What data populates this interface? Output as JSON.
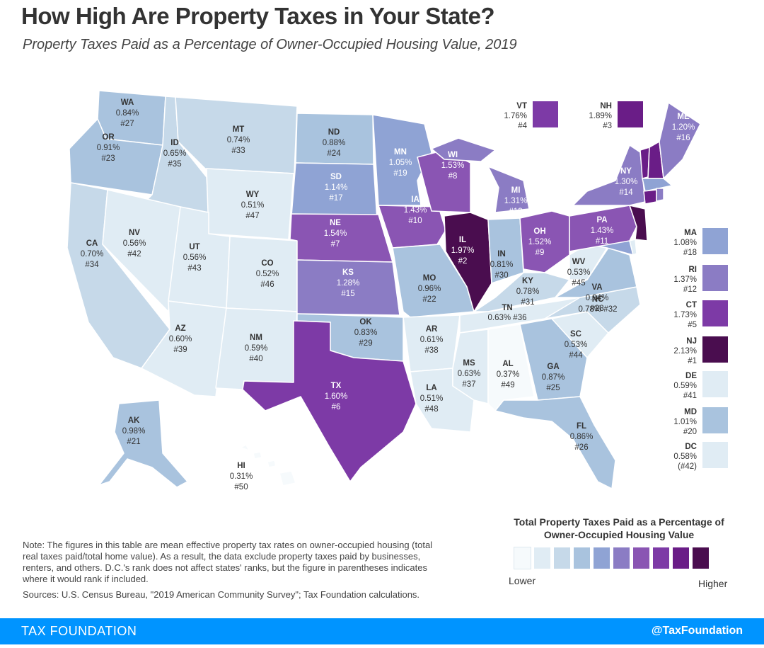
{
  "title": "How High Are Property Taxes in Your State?",
  "subtitle": "Property Taxes Paid as a Percentage of Owner-Occupied Housing Value, 2019",
  "colors": {
    "scale": [
      "#f6fafc",
      "#e0ecf4",
      "#c6d9e9",
      "#a9c3de",
      "#8fa3d4",
      "#8b7cc4",
      "#8a55b3",
      "#7d3aa6",
      "#6a1d87",
      "#4a0d4f"
    ]
  },
  "states": [
    {
      "abbr": "WA",
      "rate": "0.84%",
      "rank": "#27"
    },
    {
      "abbr": "OR",
      "rate": "0.91%",
      "rank": "#23"
    },
    {
      "abbr": "CA",
      "rate": "0.70%",
      "rank": "#34"
    },
    {
      "abbr": "ID",
      "rate": "0.65%",
      "rank": "#35"
    },
    {
      "abbr": "NV",
      "rate": "0.56%",
      "rank": "#42"
    },
    {
      "abbr": "MT",
      "rate": "0.74%",
      "rank": "#33"
    },
    {
      "abbr": "WY",
      "rate": "0.51%",
      "rank": "#47"
    },
    {
      "abbr": "UT",
      "rate": "0.56%",
      "rank": "#43"
    },
    {
      "abbr": "CO",
      "rate": "0.52%",
      "rank": "#46"
    },
    {
      "abbr": "AZ",
      "rate": "0.60%",
      "rank": "#39"
    },
    {
      "abbr": "NM",
      "rate": "0.59%",
      "rank": "#40"
    },
    {
      "abbr": "ND",
      "rate": "0.88%",
      "rank": "#24"
    },
    {
      "abbr": "SD",
      "rate": "1.14%",
      "rank": "#17"
    },
    {
      "abbr": "NE",
      "rate": "1.54%",
      "rank": "#7"
    },
    {
      "abbr": "KS",
      "rate": "1.28%",
      "rank": "#15"
    },
    {
      "abbr": "OK",
      "rate": "0.83%",
      "rank": "#29"
    },
    {
      "abbr": "TX",
      "rate": "1.60%",
      "rank": "#6"
    },
    {
      "abbr": "MN",
      "rate": "1.05%",
      "rank": "#19"
    },
    {
      "abbr": "IA",
      "rate": "1.43%",
      "rank": "#10"
    },
    {
      "abbr": "MO",
      "rate": "0.96%",
      "rank": "#22"
    },
    {
      "abbr": "AR",
      "rate": "0.61%",
      "rank": "#38"
    },
    {
      "abbr": "LA",
      "rate": "0.51%",
      "rank": "#48"
    },
    {
      "abbr": "WI",
      "rate": "1.53%",
      "rank": "#8"
    },
    {
      "abbr": "IL",
      "rate": "1.97%",
      "rank": "#2"
    },
    {
      "abbr": "MI",
      "rate": "1.31%",
      "rank": "#13"
    },
    {
      "abbr": "IN",
      "rate": "0.81%",
      "rank": "#30"
    },
    {
      "abbr": "OH",
      "rate": "1.52%",
      "rank": "#9"
    },
    {
      "abbr": "KY",
      "rate": "0.78%",
      "rank": "#31"
    },
    {
      "abbr": "TN",
      "rate": "0.63%",
      "rank": "#36"
    },
    {
      "abbr": "MS",
      "rate": "0.63%",
      "rank": "#37"
    },
    {
      "abbr": "AL",
      "rate": "0.37%",
      "rank": "#49"
    },
    {
      "abbr": "GA",
      "rate": "0.87%",
      "rank": "#25"
    },
    {
      "abbr": "FL",
      "rate": "0.86%",
      "rank": "#26"
    },
    {
      "abbr": "SC",
      "rate": "0.53%",
      "rank": "#44"
    },
    {
      "abbr": "NC",
      "rate": "0.78%",
      "rank": "#32"
    },
    {
      "abbr": "VA",
      "rate": "0.84%",
      "rank": "#28"
    },
    {
      "abbr": "WV",
      "rate": "0.53%",
      "rank": "#45"
    },
    {
      "abbr": "PA",
      "rate": "1.43%",
      "rank": "#11"
    },
    {
      "abbr": "NY",
      "rate": "1.30%",
      "rank": "#14"
    },
    {
      "abbr": "ME",
      "rate": "1.20%",
      "rank": "#16"
    },
    {
      "abbr": "AK",
      "rate": "0.98%",
      "rank": "#21"
    },
    {
      "abbr": "HI",
      "rate": "0.31%",
      "rank": "#50"
    }
  ],
  "callouts_top": [
    {
      "abbr": "VT",
      "rate": "1.76%",
      "rank": "#4",
      "color": "#7d3aa6"
    },
    {
      "abbr": "NH",
      "rate": "1.89%",
      "rank": "#3",
      "color": "#6a1d87"
    }
  ],
  "callouts_side": [
    {
      "abbr": "MA",
      "rate": "1.08%",
      "rank": "#18",
      "color": "#8fa3d4"
    },
    {
      "abbr": "RI",
      "rate": "1.37%",
      "rank": "#12",
      "color": "#8b7cc4"
    },
    {
      "abbr": "CT",
      "rate": "1.73%",
      "rank": "#5",
      "color": "#7d3aa6"
    },
    {
      "abbr": "NJ",
      "rate": "2.13%",
      "rank": "#1",
      "color": "#4a0d4f"
    },
    {
      "abbr": "DE",
      "rate": "0.59%",
      "rank": "#41",
      "color": "#e0ecf4"
    },
    {
      "abbr": "MD",
      "rate": "1.01%",
      "rank": "#20",
      "color": "#a9c3de"
    },
    {
      "abbr": "DC",
      "rate": "0.58%",
      "rank": "(#42)",
      "color": "#e0ecf4"
    }
  ],
  "legend": {
    "title": "Total Property Taxes Paid as a Percentage of Owner-Occupied Housing Value",
    "low": "Lower",
    "high": "Higher"
  },
  "note": "Note: The figures in this table are mean effective property tax rates on owner-occupied housing (total real taxes paid/total home value). As a result, the data exclude property taxes paid by businesses, renters, and others. D.C.'s rank does not affect states' ranks, but the figure in parentheses indicates where it would rank if included.",
  "sources": "Sources: U.S. Census Bureau, \"2019 American Community Survey\"; Tax Foundation calculations.",
  "footer": {
    "brand": "TAX FOUNDATION",
    "handle": "@TaxFoundation"
  }
}
